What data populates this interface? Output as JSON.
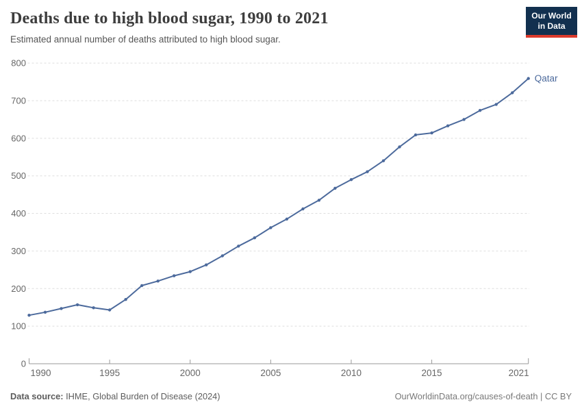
{
  "header": {
    "title": "Deaths due to high blood sugar, 1990 to 2021",
    "subtitle": "Estimated annual number of deaths attributed to high blood sugar."
  },
  "logo": {
    "line1": "Our World",
    "line2": "in Data"
  },
  "chart_data": {
    "type": "line",
    "title": "Deaths due to high blood sugar, 1990 to 2021",
    "xlabel": "",
    "ylabel": "",
    "x": [
      1990,
      1991,
      1992,
      1993,
      1994,
      1995,
      1996,
      1997,
      1998,
      1999,
      2000,
      2001,
      2002,
      2003,
      2004,
      2005,
      2006,
      2007,
      2008,
      2009,
      2010,
      2011,
      2012,
      2013,
      2014,
      2015,
      2016,
      2017,
      2018,
      2019,
      2020,
      2021
    ],
    "series": [
      {
        "name": "Qatar",
        "values": [
          129,
          137,
          147,
          157,
          149,
          143,
          171,
          208,
          220,
          234,
          245,
          263,
          287,
          313,
          335,
          362,
          385,
          412,
          435,
          467,
          490,
          511,
          540,
          577,
          609,
          614,
          633,
          650,
          674,
          690,
          721,
          759
        ]
      }
    ],
    "xlim": [
      1990,
      2021
    ],
    "ylim": [
      0,
      800
    ],
    "yticks": [
      0,
      100,
      200,
      300,
      400,
      500,
      600,
      700,
      800
    ],
    "xticks": [
      1990,
      1995,
      2000,
      2005,
      2010,
      2015,
      2021
    ],
    "grid": true,
    "legend_position": "end-of-line",
    "colors": {
      "line": "#4C6A9C",
      "grid": "#dedede",
      "axis": "#999999",
      "axis_text": "#666666"
    }
  },
  "footer": {
    "source_label": "Data source:",
    "source_text": " IHME, Global Burden of Disease (2024)",
    "credit_link": "OurWorldinData.org/causes-of-death",
    "credit_suffix": " | CC BY"
  }
}
